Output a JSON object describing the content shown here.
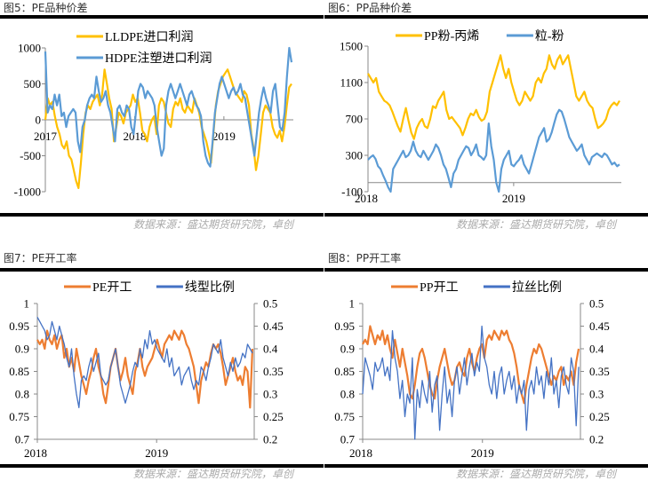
{
  "source_text": "数据来源：盛达期货研究院，卓创",
  "chart_data": [
    {
      "id": "fig5",
      "type": "line",
      "title": "图5：PE品种价差",
      "xlabel": "",
      "ylabel": "",
      "ylim": [
        -1000,
        1000
      ],
      "yticks": [
        "1000",
        "500",
        "0",
        "-500",
        "-1000"
      ],
      "ytick_values": [
        1000,
        500,
        0,
        -500,
        -1000
      ],
      "xticks": [
        "2017",
        "2018",
        "2019"
      ],
      "xtick_pos": [
        0.0,
        0.36,
        0.72
      ],
      "x_axis_at": 0,
      "legend_position": "top",
      "legend_stacked": true,
      "series": [
        {
          "name": "LLDPE进口利润",
          "color": "#FFC000",
          "values": [
            0,
            300,
            200,
            250,
            50,
            -100,
            -200,
            -350,
            -400,
            -300,
            -500,
            -550,
            -700,
            -850,
            -950,
            -600,
            -200,
            100,
            200,
            150,
            250,
            300,
            350,
            200,
            350,
            700,
            500,
            300,
            150,
            -300,
            -100,
            100,
            50,
            -50,
            100,
            150,
            200,
            350,
            250,
            300,
            100,
            -150,
            -200,
            -300,
            -100,
            0,
            50,
            -200,
            200,
            300,
            250,
            100,
            -50,
            -100,
            150,
            250,
            200,
            300,
            150,
            100,
            200,
            150,
            100,
            300,
            200,
            100,
            -100,
            -200,
            -300,
            -450,
            -600,
            -200,
            200,
            400,
            500,
            600,
            650,
            700,
            600,
            500,
            400,
            350,
            300,
            250,
            400,
            350,
            200,
            -200,
            -400,
            -700,
            -500,
            -200,
            100,
            200,
            150,
            100,
            -100,
            -200,
            -250,
            -150,
            -300,
            -100,
            200,
            450,
            500
          ]
        },
        {
          "name": "HDPE注塑进口利润",
          "color": "#5B9BD5",
          "values": [
            950,
            100,
            200,
            150,
            350,
            200,
            350,
            50,
            100,
            -100,
            50,
            100,
            150,
            100,
            -300,
            -450,
            -100,
            0,
            200,
            300,
            350,
            300,
            600,
            400,
            250,
            300,
            400,
            200,
            100,
            -100,
            -300,
            150,
            200,
            100,
            50,
            200,
            150,
            -100,
            -200,
            100,
            400,
            500,
            450,
            300,
            400,
            350,
            300,
            200,
            -100,
            -300,
            -500,
            -400,
            200,
            400,
            500,
            400,
            300,
            400,
            500,
            400,
            300,
            200,
            350,
            400,
            300,
            200,
            150,
            50,
            -300,
            -500,
            -600,
            -650,
            -300,
            100,
            300,
            500,
            600,
            500,
            400,
            300,
            400,
            450,
            350,
            400,
            500,
            350,
            300,
            100,
            -100,
            -300,
            -500,
            -200,
            100,
            300,
            450,
            300,
            200,
            100,
            400,
            500,
            200,
            -100,
            -150,
            100,
            600,
            1000,
            800
          ]
        }
      ]
    },
    {
      "id": "fig6",
      "type": "line",
      "title": "图6：PP品种价差",
      "xlabel": "",
      "ylabel": "",
      "ylim": [
        -100,
        1500
      ],
      "yticks": [
        "1500",
        "1100",
        "700",
        "300",
        "-100"
      ],
      "ytick_values": [
        1500,
        1100,
        700,
        300,
        -100
      ],
      "xticks": [
        "2018",
        "2019"
      ],
      "xtick_pos": [
        0.0,
        0.575
      ],
      "x_axis_at": 0,
      "legend_position": "top",
      "legend_stacked": false,
      "series": [
        {
          "name": "PP粉-丙烯",
          "color": "#FFC000",
          "values": [
            1200,
            1150,
            1100,
            1150,
            1000,
            950,
            900,
            880,
            850,
            780,
            700,
            620,
            560,
            700,
            820,
            680,
            550,
            480,
            600,
            660,
            700,
            620,
            600,
            700,
            840,
            820,
            900,
            950,
            1000,
            800,
            700,
            720,
            680,
            640,
            600,
            520,
            600,
            700,
            760,
            740,
            800,
            720,
            680,
            700,
            780,
            1000,
            1100,
            1200,
            1300,
            1400,
            1250,
            1150,
            1250,
            1100,
            1000,
            900,
            850,
            900,
            1000,
            950,
            900,
            950,
            1100,
            1150,
            1100,
            1200,
            1250,
            1400,
            1300,
            1250,
            1350,
            1400,
            1300,
            1350,
            1400,
            1250,
            1100,
            950,
            900,
            950,
            1000,
            900,
            850,
            820,
            700,
            600,
            620,
            650,
            700,
            800,
            850,
            880,
            850,
            900
          ]
        },
        {
          "name": "粒-粉",
          "color": "#5B9BD5",
          "values": [
            250,
            280,
            300,
            260,
            180,
            150,
            80,
            20,
            -50,
            -100,
            150,
            200,
            250,
            300,
            350,
            280,
            300,
            350,
            450,
            350,
            300,
            280,
            350,
            300,
            250,
            300,
            350,
            420,
            380,
            300,
            200,
            150,
            50,
            -50,
            100,
            150,
            250,
            300,
            350,
            400,
            380,
            300,
            350,
            420,
            300,
            280,
            250,
            300,
            650,
            400,
            250,
            0,
            -100,
            150,
            250,
            300,
            350,
            200,
            180,
            220,
            250,
            300,
            200,
            150,
            100,
            200,
            300,
            400,
            500,
            550,
            600,
            450,
            480,
            550,
            650,
            750,
            800,
            780,
            700,
            600,
            500,
            450,
            400,
            350,
            380,
            420,
            300,
            250,
            200,
            280,
            300,
            320,
            300,
            280,
            320,
            300,
            250,
            200,
            220,
            180,
            200
          ]
        }
      ]
    },
    {
      "id": "fig7",
      "type": "line",
      "title": "图7：PE开工率",
      "xlabel": "",
      "ylabel": "",
      "ylim": [
        0.7,
        1.0
      ],
      "y2lim": [
        0.2,
        0.5
      ],
      "yticks": [
        "1",
        "0.95",
        "0.9",
        "0.85",
        "0.8",
        "0.75",
        "0.7"
      ],
      "ytick_values": [
        1.0,
        0.95,
        0.9,
        0.85,
        0.8,
        0.75,
        0.7
      ],
      "y2ticks": [
        "0.5",
        "0.45",
        "0.4",
        "0.35",
        "0.3",
        "0.25",
        "0.2"
      ],
      "y2tick_values": [
        0.5,
        0.45,
        0.4,
        0.35,
        0.3,
        0.25,
        0.2
      ],
      "xticks": [
        "2018",
        "2019"
      ],
      "xtick_pos": [
        0.0,
        0.55
      ],
      "legend_position": "top",
      "legend_stacked": false,
      "series": [
        {
          "name": "PE开工",
          "color": "#ED7D31",
          "axis": "left",
          "values": [
            0.92,
            0.91,
            0.92,
            0.9,
            0.94,
            0.92,
            0.91,
            0.93,
            0.9,
            0.92,
            0.93,
            0.88,
            0.9,
            0.86,
            0.88,
            0.85,
            0.9,
            0.87,
            0.84,
            0.82,
            0.8,
            0.83,
            0.85,
            0.88,
            0.9,
            0.86,
            0.84,
            0.8,
            0.78,
            0.82,
            0.86,
            0.88,
            0.9,
            0.86,
            0.83,
            0.85,
            0.88,
            0.84,
            0.82,
            0.8,
            0.85,
            0.87,
            0.9,
            0.86,
            0.84,
            0.86,
            0.87,
            0.88,
            0.9,
            0.92,
            0.9,
            0.88,
            0.91,
            0.92,
            0.93,
            0.92,
            0.94,
            0.93,
            0.92,
            0.94,
            0.93,
            0.91,
            0.9,
            0.88,
            0.86,
            0.82,
            0.78,
            0.83,
            0.85,
            0.87,
            0.86,
            0.89,
            0.91,
            0.9,
            0.91,
            0.89,
            0.86,
            0.82,
            0.84,
            0.86,
            0.88,
            0.85,
            0.83,
            0.84,
            0.82,
            0.86,
            0.85,
            0.77,
            0.9
          ]
        },
        {
          "name": "线型比例",
          "color": "#4472C4",
          "axis": "right",
          "values": [
            0.47,
            0.46,
            0.45,
            0.44,
            0.42,
            0.43,
            0.46,
            0.44,
            0.42,
            0.45,
            0.43,
            0.41,
            0.38,
            0.36,
            0.4,
            0.34,
            0.3,
            0.27,
            0.33,
            0.34,
            0.33,
            0.36,
            0.38,
            0.35,
            0.37,
            0.39,
            0.34,
            0.33,
            0.32,
            0.33,
            0.36,
            0.38,
            0.4,
            0.36,
            0.32,
            0.3,
            0.28,
            0.3,
            0.32,
            0.35,
            0.37,
            0.36,
            0.4,
            0.38,
            0.42,
            0.4,
            0.44,
            0.41,
            0.42,
            0.4,
            0.39,
            0.38,
            0.37,
            0.4,
            0.36,
            0.38,
            0.34,
            0.35,
            0.36,
            0.32,
            0.34,
            0.35,
            0.36,
            0.33,
            0.31,
            0.33,
            0.32,
            0.36,
            0.35,
            0.33,
            0.36,
            0.38,
            0.41,
            0.4,
            0.39,
            0.42,
            0.38,
            0.36,
            0.34,
            0.37,
            0.35,
            0.38,
            0.36,
            0.37,
            0.39,
            0.38,
            0.41,
            0.4,
            0.39
          ]
        }
      ]
    },
    {
      "id": "fig8",
      "type": "line",
      "title": "图8：PP开工率",
      "xlabel": "",
      "ylabel": "",
      "ylim": [
        0.7,
        1.0
      ],
      "y2lim": [
        0.2,
        0.5
      ],
      "yticks": [
        "1",
        "0.95",
        "0.9",
        "0.85",
        "0.8",
        "0.75",
        "0.7"
      ],
      "ytick_values": [
        1.0,
        0.95,
        0.9,
        0.85,
        0.8,
        0.75,
        0.7
      ],
      "y2ticks": [
        "0.5",
        "0.45",
        "0.4",
        "0.35",
        "0.3",
        "0.25",
        "0.2"
      ],
      "y2tick_values": [
        0.5,
        0.45,
        0.4,
        0.35,
        0.3,
        0.25,
        0.2
      ],
      "xticks": [
        "2018",
        "2019"
      ],
      "xtick_pos": [
        0.0,
        0.55
      ],
      "legend_position": "top",
      "legend_stacked": false,
      "series": [
        {
          "name": "PP开工",
          "color": "#ED7D31",
          "axis": "left",
          "values": [
            0.91,
            0.92,
            0.91,
            0.95,
            0.93,
            0.91,
            0.93,
            0.92,
            0.94,
            0.91,
            0.93,
            0.9,
            0.88,
            0.92,
            0.89,
            0.86,
            0.9,
            0.87,
            0.84,
            0.8,
            0.79,
            0.82,
            0.86,
            0.89,
            0.9,
            0.88,
            0.85,
            0.82,
            0.8,
            0.79,
            0.83,
            0.86,
            0.88,
            0.9,
            0.87,
            0.84,
            0.82,
            0.83,
            0.86,
            0.87,
            0.85,
            0.84,
            0.88,
            0.9,
            0.87,
            0.85,
            0.88,
            0.9,
            0.91,
            0.88,
            0.92,
            0.93,
            0.92,
            0.94,
            0.93,
            0.92,
            0.94,
            0.93,
            0.94,
            0.92,
            0.91,
            0.89,
            0.86,
            0.82,
            0.8,
            0.78,
            0.82,
            0.85,
            0.88,
            0.9,
            0.89,
            0.91,
            0.9,
            0.88,
            0.86,
            0.84,
            0.82,
            0.84,
            0.83,
            0.85,
            0.86,
            0.82,
            0.84,
            0.83,
            0.85,
            0.82,
            0.87,
            0.9
          ]
        },
        {
          "name": "拉丝比例",
          "color": "#4472C4",
          "axis": "right",
          "values": [
            0.3,
            0.38,
            0.36,
            0.34,
            0.31,
            0.37,
            0.35,
            0.36,
            0.38,
            0.34,
            0.36,
            0.33,
            0.44,
            0.38,
            0.35,
            0.29,
            0.33,
            0.25,
            0.3,
            0.28,
            0.38,
            0.2,
            0.31,
            0.27,
            0.33,
            0.3,
            0.28,
            0.35,
            0.26,
            0.32,
            0.34,
            0.22,
            0.3,
            0.36,
            0.28,
            0.31,
            0.25,
            0.33,
            0.36,
            0.3,
            0.34,
            0.38,
            0.32,
            0.36,
            0.39,
            0.34,
            0.37,
            0.35,
            0.45,
            0.38,
            0.36,
            0.32,
            0.3,
            0.35,
            0.29,
            0.34,
            0.36,
            0.3,
            0.33,
            0.35,
            0.31,
            0.34,
            0.28,
            0.32,
            0.3,
            0.33,
            0.22,
            0.31,
            0.33,
            0.3,
            0.36,
            0.32,
            0.34,
            0.29,
            0.35,
            0.32,
            0.38,
            0.3,
            0.33,
            0.27,
            0.34,
            0.36,
            0.32,
            0.3,
            0.38,
            0.35,
            0.23,
            0.36
          ]
        }
      ]
    }
  ]
}
